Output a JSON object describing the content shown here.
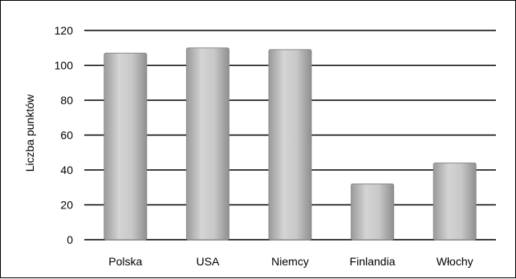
{
  "chart_data": {
    "type": "bar",
    "title": "",
    "xlabel": "",
    "ylabel": "Liczba punktów",
    "categories": [
      "Polska",
      "USA",
      "Niemcy",
      "Finlandia",
      "Włochy"
    ],
    "series": [
      {
        "values": [
          107,
          110,
          109,
          32,
          44
        ]
      }
    ],
    "ylim": [
      0,
      120
    ],
    "yticks": [
      0,
      20,
      40,
      60,
      80,
      100,
      120
    ],
    "grid": true,
    "legend": "none",
    "colors": {
      "bar_fill": "#bdbdbd",
      "bar_edge": "#8c8c8c",
      "grid": "#000000"
    }
  }
}
